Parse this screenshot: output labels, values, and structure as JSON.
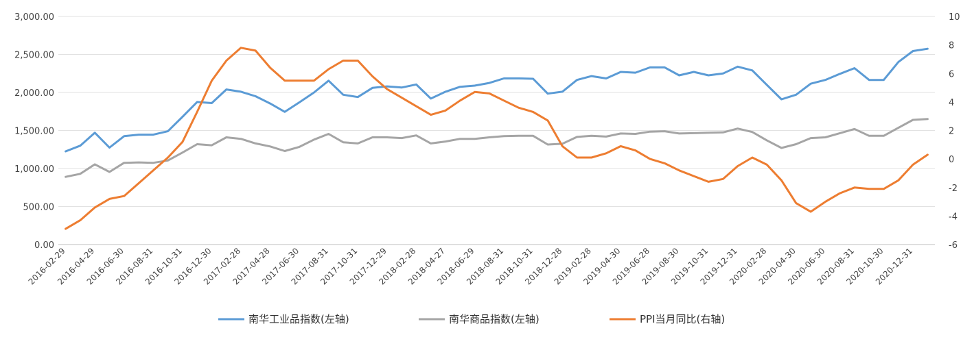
{
  "chart_data": {
    "type": "line",
    "title": "",
    "x_tick_labels": [
      "2016-02-29",
      "2016-04-29",
      "2016-06-30",
      "2016-08-31",
      "2016-10-31",
      "2016-12-30",
      "2017-02-28",
      "2017-04-28",
      "2017-06-30",
      "2017-08-31",
      "2017-10-31",
      "2017-12-29",
      "2018-02-28",
      "2018-04-27",
      "2018-06-29",
      "2018-08-31",
      "2018-10-31",
      "2018-12-28",
      "2019-02-28",
      "2019-04-30",
      "2019-06-28",
      "2019-08-30",
      "2019-10-31",
      "2019-12-31",
      "2020-02-28",
      "2020-04-30",
      "2020-06-30",
      "2020-08-31",
      "2020-10-30",
      "2020-12-31"
    ],
    "y_left": {
      "min": 0,
      "max": 3000,
      "step": 500,
      "tick_labels": [
        "0.00",
        "500.00",
        "1,000.00",
        "1,500.00",
        "2,000.00",
        "2,500.00",
        "3,000.00"
      ]
    },
    "y_right": {
      "min": -6,
      "max": 10,
      "step": 2,
      "tick_labels": [
        "-6",
        "-4",
        "-2",
        "0",
        "2",
        "4",
        "6",
        "8",
        "10"
      ]
    },
    "series": [
      {
        "name": "南华工业品指数(左轴)",
        "axis": "left",
        "color": "#5B9BD5",
        "values": [
          1225,
          1300,
          1470,
          1275,
          1425,
          1445,
          1445,
          1490,
          1680,
          1875,
          1860,
          2040,
          2010,
          1950,
          1855,
          1745,
          1870,
          2000,
          2155,
          1970,
          1940,
          2060,
          2080,
          2065,
          2105,
          1920,
          2010,
          2075,
          2090,
          2125,
          2185,
          2185,
          2180,
          1985,
          2010,
          2165,
          2215,
          2185,
          2270,
          2260,
          2330,
          2330,
          2225,
          2270,
          2225,
          2250,
          2340,
          2290,
          2100,
          1910,
          1970,
          2115,
          2165,
          2245,
          2320,
          2165,
          2165,
          2400,
          2545,
          2575
        ]
      },
      {
        "name": "南华商品指数(左轴)",
        "axis": "left",
        "color": "#A5A5A5",
        "values": [
          890,
          930,
          1055,
          955,
          1075,
          1080,
          1075,
          1105,
          1210,
          1320,
          1305,
          1410,
          1390,
          1330,
          1290,
          1230,
          1285,
          1380,
          1455,
          1345,
          1330,
          1410,
          1410,
          1400,
          1435,
          1330,
          1355,
          1390,
          1390,
          1410,
          1425,
          1430,
          1430,
          1315,
          1325,
          1415,
          1430,
          1420,
          1460,
          1455,
          1485,
          1490,
          1460,
          1465,
          1470,
          1475,
          1525,
          1480,
          1370,
          1270,
          1320,
          1400,
          1410,
          1465,
          1520,
          1430,
          1430,
          1535,
          1640,
          1650
        ]
      },
      {
        "name": "PPI当月同比(右轴)",
        "axis": "right",
        "color": "#ED7D31",
        "values": [
          -4.9,
          -4.3,
          -3.4,
          -2.8,
          -2.6,
          -1.7,
          -0.8,
          0.1,
          1.2,
          3.3,
          5.5,
          6.9,
          7.8,
          7.6,
          6.4,
          5.5,
          5.5,
          5.5,
          6.3,
          6.9,
          6.9,
          5.8,
          4.9,
          4.3,
          3.7,
          3.1,
          3.4,
          4.1,
          4.7,
          4.6,
          4.1,
          3.6,
          3.3,
          2.7,
          0.9,
          0.1,
          0.1,
          0.4,
          0.9,
          0.6,
          0.0,
          -0.3,
          -0.8,
          -1.2,
          -1.6,
          -1.4,
          -0.5,
          0.1,
          -0.4,
          -1.5,
          -3.1,
          -3.7,
          -3.0,
          -2.4,
          -2.0,
          -2.1,
          -2.1,
          -1.5,
          -0.4,
          0.3
        ]
      }
    ],
    "legend_position": "bottom",
    "grid": true
  }
}
